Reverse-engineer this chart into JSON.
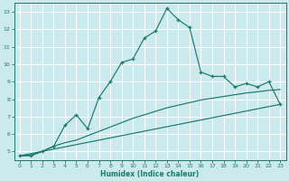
{
  "xlabel": "Humidex (Indice chaleur)",
  "bg_color": "#cce9ed",
  "grid_color": "#ffffff",
  "line_color": "#1a7a6e",
  "xlim": [
    -0.5,
    23.5
  ],
  "ylim": [
    4.5,
    13.5
  ],
  "yticks": [
    5,
    6,
    7,
    8,
    9,
    10,
    11,
    12,
    13
  ],
  "xticks": [
    0,
    1,
    2,
    3,
    4,
    5,
    6,
    7,
    8,
    9,
    10,
    11,
    12,
    13,
    14,
    15,
    16,
    17,
    18,
    19,
    20,
    21,
    22,
    23
  ],
  "curve1_x": [
    0,
    1,
    2,
    3,
    4,
    5,
    6,
    7,
    8,
    9,
    10,
    11,
    12,
    13,
    14,
    15,
    16,
    17,
    18,
    19,
    20,
    21,
    22,
    23
  ],
  "curve1_y": [
    4.75,
    4.75,
    5.0,
    5.3,
    6.5,
    7.1,
    6.3,
    8.1,
    9.0,
    10.1,
    10.3,
    11.5,
    11.9,
    13.2,
    12.55,
    12.1,
    9.55,
    9.3,
    9.3,
    8.7,
    8.9,
    8.7,
    9.0,
    7.7
  ],
  "curve2_x": [
    0,
    1,
    2,
    3,
    4,
    5,
    6,
    7,
    8,
    9,
    10,
    11,
    12,
    13,
    14,
    15,
    16,
    17,
    18,
    19,
    20,
    21,
    22,
    23
  ],
  "curve2_y": [
    4.75,
    4.8,
    5.0,
    5.3,
    5.5,
    5.65,
    5.9,
    6.15,
    6.4,
    6.65,
    6.9,
    7.1,
    7.3,
    7.5,
    7.65,
    7.8,
    7.95,
    8.05,
    8.15,
    8.25,
    8.35,
    8.42,
    8.5,
    8.55
  ],
  "curve3_x": [
    0,
    23
  ],
  "curve3_y": [
    4.75,
    7.7
  ]
}
